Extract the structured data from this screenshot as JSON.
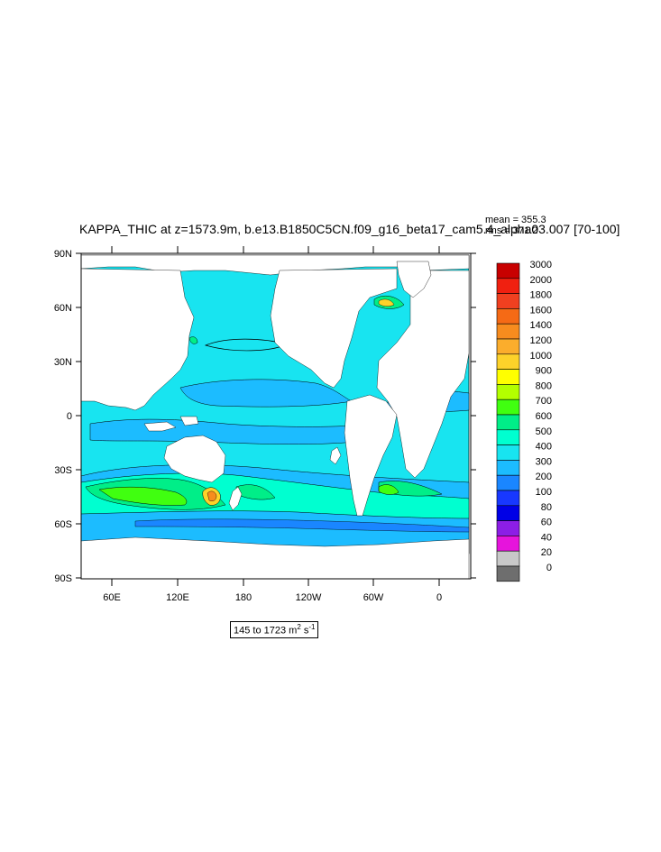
{
  "title": "KAPPA_THIC at z=1573.9m, b.e13.B1850C5CN.f09_g16_beta17_cam5.4_alpha03.007 [70-100]",
  "stats": {
    "mean": "mean = 355.3",
    "rms": "rms = 371.2"
  },
  "range_label": {
    "text": "145 to 1723 m",
    "unit_sup1": "2",
    "unit_mid": " s",
    "unit_sup2": "-1"
  },
  "map_data": {
    "type": "filled-contour-map",
    "lat_labels": [
      "90N",
      "60N",
      "30N",
      "0",
      "30S",
      "60S",
      "90S"
    ],
    "lon_labels": [
      "60E",
      "120E",
      "180",
      "120W",
      "60W",
      "0"
    ],
    "colorbar_levels": [
      "3000",
      "2000",
      "1800",
      "1600",
      "1400",
      "1200",
      "1000",
      "900",
      "800",
      "700",
      "600",
      "500",
      "400",
      "300",
      "200",
      "100",
      "80",
      "60",
      "40",
      "20",
      "0"
    ],
    "colorbar_colors": [
      "#c80000",
      "#f02010",
      "#f04020",
      "#f56a15",
      "#f78c1e",
      "#fbad2c",
      "#fdd22a",
      "#ffff00",
      "#b3ff00",
      "#40ff10",
      "#00ee88",
      "#00ffd0",
      "#18e4f0",
      "#1cbcff",
      "#1a86ff",
      "#1838ff",
      "#0000e6",
      "#8c1ee6",
      "#e614dc",
      "#c8c8c8",
      "#6e6e6e"
    ]
  }
}
